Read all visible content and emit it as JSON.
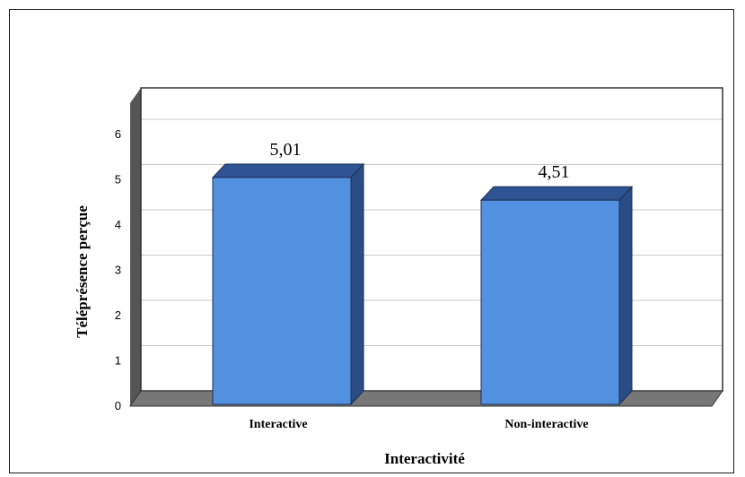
{
  "chart_data": {
    "type": "bar",
    "title": "",
    "xlabel": "Interactivité",
    "ylabel": "Téléprésence perçue",
    "categories": [
      "Interactive",
      "Non-interactive"
    ],
    "values": [
      5.01,
      4.51
    ],
    "data_labels": [
      "5,01",
      "4,51"
    ],
    "ylim": [
      0,
      6
    ],
    "yticks": [
      0,
      1,
      2,
      3,
      4,
      5,
      6
    ],
    "grid": true,
    "legend": "none",
    "colors": {
      "bar_front": "#5291e0",
      "bar_side": "#2b4d86",
      "bar_top": "#2f5494",
      "wall": "#555555",
      "grid": "#c8c8c8",
      "floor": "#777777"
    }
  }
}
